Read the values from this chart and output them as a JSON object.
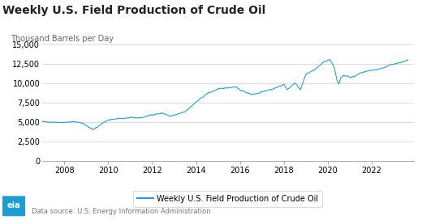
{
  "title": "Weekly U.S. Field Production of Crude Oil",
  "ylabel": "Thousand Barrels per Day",
  "line_color": "#1a9ed4",
  "line_label": "Weekly U.S. Field Production of Crude Oil",
  "bg_color": "#ffffff",
  "grid_color": "#cccccc",
  "ylim": [
    0,
    15000
  ],
  "yticks": [
    0,
    2500,
    5000,
    7500,
    10000,
    12500,
    15000
  ],
  "source_text": "Data source: U.S. Energy Information Administration",
  "title_fontsize": 10,
  "ylabel_fontsize": 7,
  "tick_fontsize": 7,
  "legend_fontsize": 7,
  "xtick_locs": [
    2008,
    2010,
    2012,
    2014,
    2016,
    2018,
    2020,
    2022
  ],
  "xlim": [
    2007.0,
    2023.9
  ],
  "waypoints_x": [
    2007.0,
    2007.5,
    2008.0,
    2008.5,
    2008.85,
    2009.3,
    2009.8,
    2010.0,
    2010.5,
    2011.0,
    2011.5,
    2012.0,
    2012.5,
    2012.8,
    2013.0,
    2013.5,
    2014.0,
    2014.5,
    2015.0,
    2015.5,
    2015.8,
    2016.0,
    2016.5,
    2016.9,
    2017.0,
    2017.5,
    2018.0,
    2018.15,
    2018.5,
    2018.75,
    2019.0,
    2019.5,
    2019.8,
    2020.0,
    2020.1,
    2020.3,
    2020.4,
    2020.5,
    2020.6,
    2020.7,
    2020.8,
    2020.9,
    2021.0,
    2021.2,
    2021.4,
    2021.7,
    2021.9,
    2022.0,
    2022.2,
    2022.5,
    2022.7,
    2022.9,
    2023.0,
    2023.3,
    2023.5,
    2023.65
  ],
  "waypoints_y": [
    5100,
    5050,
    5000,
    5100,
    4900,
    4050,
    5000,
    5300,
    5500,
    5600,
    5600,
    6000,
    6200,
    5800,
    5900,
    6400,
    7600,
    8700,
    9300,
    9500,
    9600,
    9200,
    8600,
    8800,
    9000,
    9300,
    9900,
    9200,
    10100,
    9200,
    11200,
    12000,
    12800,
    13000,
    13100,
    12000,
    10500,
    10000,
    10800,
    11000,
    11000,
    11000,
    10800,
    10900,
    11300,
    11500,
    11700,
    11700,
    11800,
    12000,
    12200,
    12500,
    12500,
    12700,
    12900,
    13000
  ]
}
